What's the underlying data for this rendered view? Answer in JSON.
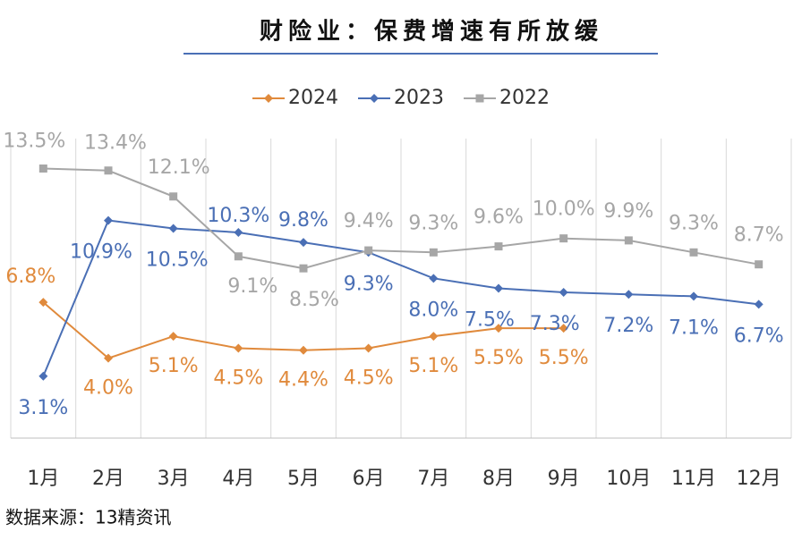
{
  "chart_data": {
    "type": "line",
    "title": "财险业：保费增速有所放缓",
    "source": "数据来源：13精资讯",
    "categories": [
      "1月",
      "2月",
      "3月",
      "4月",
      "5月",
      "6月",
      "7月",
      "8月",
      "9月",
      "10月",
      "11月",
      "12月"
    ],
    "series": [
      {
        "name": "2024",
        "color": "#e08a3c",
        "marker": "diamond",
        "values": [
          6.8,
          4.0,
          5.1,
          4.5,
          4.4,
          4.5,
          5.1,
          5.5,
          5.5,
          null,
          null,
          null
        ],
        "value_labels": [
          "6.8%",
          "4.0%",
          "5.1%",
          "4.5%",
          "4.4%",
          "4.5%",
          "5.1%",
          "5.5%",
          "5.5%",
          null,
          null,
          null
        ]
      },
      {
        "name": "2023",
        "color": "#4a6fb5",
        "marker": "diamond",
        "values": [
          3.1,
          10.9,
          10.5,
          10.3,
          9.8,
          9.3,
          8.0,
          7.5,
          7.3,
          7.2,
          7.1,
          6.7
        ],
        "value_labels": [
          "3.1%",
          "10.9%",
          "10.5%",
          "10.3%",
          "9.8%",
          "9.3%",
          "8.0%",
          "7.5%",
          "7.3%",
          "7.2%",
          "7.1%",
          "6.7%"
        ]
      },
      {
        "name": "2022",
        "color": "#a6a6a6",
        "marker": "square",
        "values": [
          13.5,
          13.4,
          12.1,
          9.1,
          8.5,
          9.4,
          9.3,
          9.6,
          10.0,
          9.9,
          9.3,
          8.7
        ],
        "value_labels": [
          "13.5%",
          "13.4%",
          "12.1%",
          "9.1%",
          "8.5%",
          "9.4%",
          "9.3%",
          "9.6%",
          "10.0%",
          "9.9%",
          "9.3%",
          "8.7%"
        ]
      }
    ],
    "ylim": [
      0,
      15
    ],
    "grid": true
  }
}
